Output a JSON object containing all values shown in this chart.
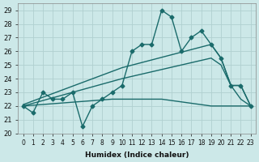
{
  "xlabel": "Humidex (Indice chaleur)",
  "background_color": "#cce8e8",
  "grid_color": "#b0d0d0",
  "line_color": "#1a6b6b",
  "xlim": [
    -0.5,
    23.5
  ],
  "ylim": [
    20,
    29.5
  ],
  "yticks": [
    20,
    21,
    22,
    23,
    24,
    25,
    26,
    27,
    28,
    29
  ],
  "xticks": [
    0,
    1,
    2,
    3,
    4,
    5,
    6,
    7,
    8,
    9,
    10,
    11,
    12,
    13,
    14,
    15,
    16,
    17,
    18,
    19,
    20,
    21,
    22,
    23
  ],
  "series": [
    {
      "x": [
        0,
        1,
        2,
        3,
        4,
        5,
        6,
        7,
        8,
        9,
        10,
        11,
        12,
        13,
        14,
        15,
        16,
        17,
        18,
        19,
        20,
        21,
        22,
        23
      ],
      "y": [
        22,
        21.5,
        23,
        22.5,
        22.5,
        23,
        20.5,
        22,
        22.5,
        23,
        23.5,
        26,
        26.5,
        26.5,
        29,
        28.5,
        26,
        27,
        27.5,
        26.5,
        25.5,
        23.5,
        23.5,
        22
      ],
      "marker": "D",
      "markersize": 2.5,
      "linewidth": 1.0
    },
    {
      "x": [
        0,
        10,
        19,
        20,
        21,
        22,
        23
      ],
      "y": [
        22.1,
        24.8,
        26.5,
        25.5,
        23.5,
        23.5,
        22
      ],
      "marker": null,
      "markersize": 0,
      "linewidth": 1.0
    },
    {
      "x": [
        0,
        10,
        19,
        20,
        21,
        22,
        23
      ],
      "y": [
        22.0,
        24.0,
        25.5,
        25.0,
        23.5,
        22.5,
        22
      ],
      "marker": null,
      "markersize": 0,
      "linewidth": 1.0
    },
    {
      "x": [
        0,
        9,
        14,
        19,
        20,
        21,
        22,
        23
      ],
      "y": [
        22.0,
        22.5,
        22.5,
        22.0,
        22.0,
        22.0,
        22.0,
        22.0
      ],
      "marker": null,
      "markersize": 0,
      "linewidth": 1.0
    }
  ]
}
